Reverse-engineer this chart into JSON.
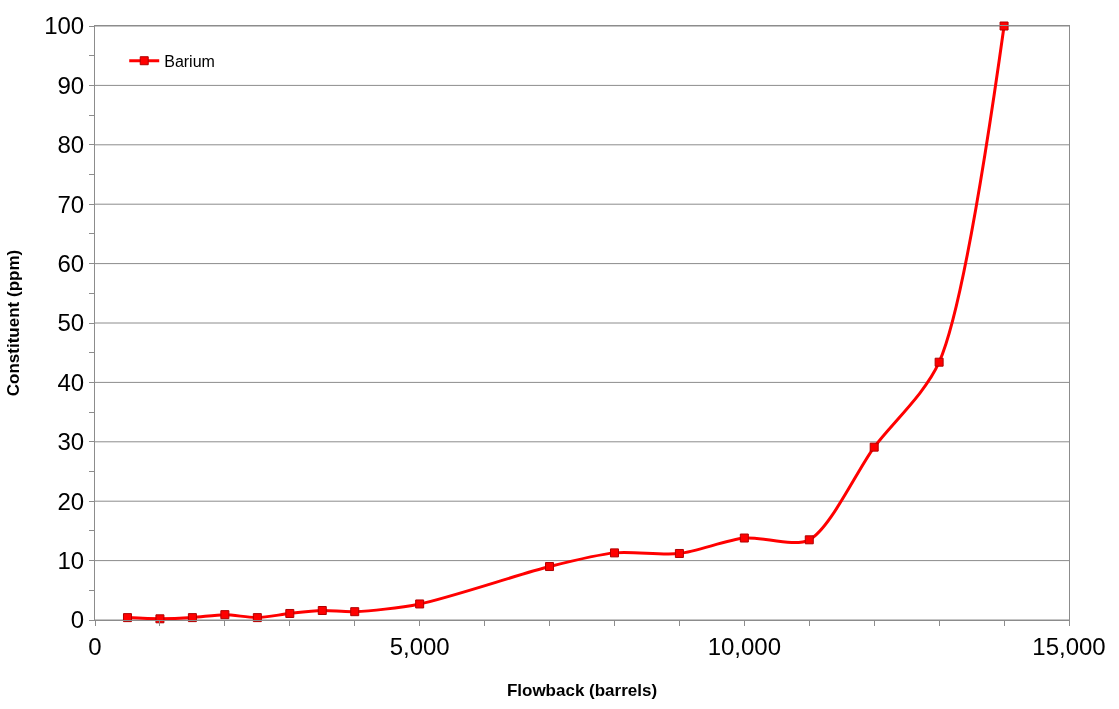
{
  "chart_data": {
    "type": "line",
    "xlabel": "Flowback (barrels)",
    "ylabel": "Constituent (ppm)",
    "x": [
      500,
      1000,
      1500,
      2000,
      2500,
      3000,
      3500,
      4000,
      5000,
      7000,
      8000,
      9000,
      10000,
      11000,
      12000,
      13000,
      14000
    ],
    "series": [
      {
        "name": "Barium",
        "color": "#ff0000",
        "values": [
          0.4,
          0.2,
          0.4,
          0.9,
          0.4,
          1.1,
          1.6,
          1.4,
          2.7,
          9.0,
          11.3,
          11.2,
          13.8,
          13.5,
          29.1,
          43.4,
          100
        ]
      }
    ],
    "xlim": [
      0,
      15000
    ],
    "xticks": [
      0,
      {
        "value": 1000,
        "label": null
      },
      {
        "value": 2000,
        "label": null
      },
      {
        "value": 3000,
        "label": null
      },
      {
        "value": 4000,
        "label": null
      },
      {
        "value": 5000,
        "label": "5,000"
      },
      {
        "value": 6000,
        "label": null
      },
      {
        "value": 7000,
        "label": null
      },
      {
        "value": 8000,
        "label": null
      },
      {
        "value": 9000,
        "label": null
      },
      {
        "value": 10000,
        "label": "10,000"
      },
      {
        "value": 11000,
        "label": null
      },
      {
        "value": 12000,
        "label": null
      },
      {
        "value": 13000,
        "label": null
      },
      {
        "value": 14000,
        "label": null
      },
      {
        "value": 15000,
        "label": "15,000"
      }
    ],
    "ylim": [
      0,
      100
    ],
    "yticks": [
      0,
      {
        "value": 5,
        "label": null
      },
      10,
      {
        "value": 15,
        "label": null
      },
      20,
      {
        "value": 25,
        "label": null
      },
      30,
      {
        "value": 35,
        "label": null
      },
      40,
      {
        "value": 45,
        "label": null
      },
      50,
      {
        "value": 55,
        "label": null
      },
      60,
      {
        "value": 65,
        "label": null
      },
      70,
      {
        "value": 75,
        "label": null
      },
      80,
      {
        "value": 85,
        "label": null
      },
      90,
      {
        "value": 95,
        "label": null
      },
      100
    ],
    "grid": "y",
    "legend": "top left",
    "marker": "square",
    "line_style": "solid"
  }
}
